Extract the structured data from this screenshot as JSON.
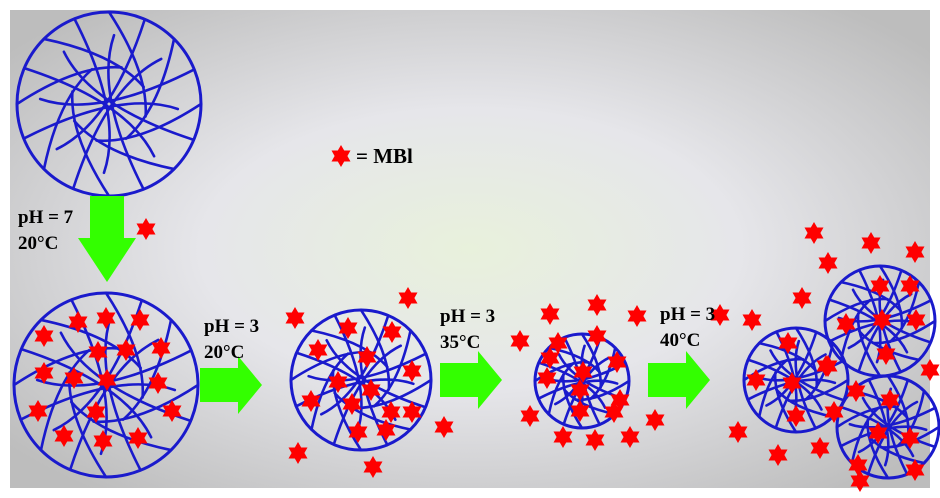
{
  "legend": {
    "text": "= MBl",
    "star_color": "#ff0000"
  },
  "steps": [
    {
      "ph": "pH = 7",
      "temp": "20°C"
    },
    {
      "ph": "pH = 3",
      "temp": "20°C"
    },
    {
      "ph": "pH = 3",
      "temp": "35°C"
    },
    {
      "ph": "pH = 3",
      "temp": "40°C"
    }
  ],
  "colors": {
    "polymer_chain": "#1a1acc",
    "arrow": "#33ff00",
    "background_center": "#e8f1dc",
    "background_edge": "#bfbfbf"
  }
}
